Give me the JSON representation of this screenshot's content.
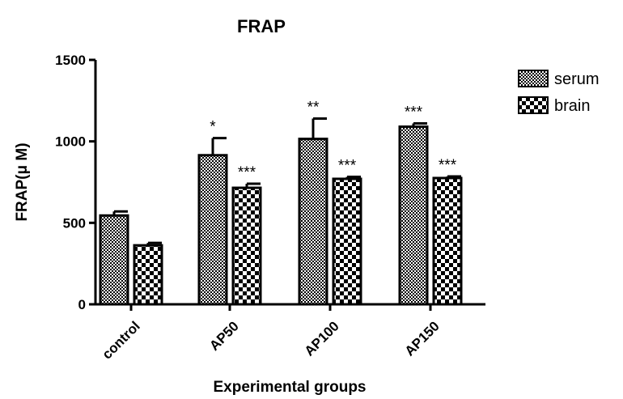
{
  "chart_data": {
    "type": "bar",
    "title": "FRAP",
    "xlabel": "Experimental groups",
    "ylabel": "FRAP(μ M)",
    "ylim": [
      0,
      1500
    ],
    "yticks": [
      0,
      500,
      1000,
      1500
    ],
    "categories": [
      "control",
      "AP50",
      "AP100",
      "AP150"
    ],
    "series": [
      {
        "name": "serum",
        "pattern": "fine-checker",
        "values": [
          545,
          915,
          1015,
          1090
        ],
        "errors": [
          25,
          105,
          125,
          20
        ],
        "significance": [
          "",
          "*",
          "**",
          "***"
        ]
      },
      {
        "name": "brain",
        "pattern": "coarse-checker",
        "values": [
          362,
          715,
          770,
          775
        ],
        "errors": [
          15,
          25,
          12,
          10
        ],
        "significance": [
          "",
          "***",
          "***",
          "***"
        ]
      }
    ],
    "grid": false,
    "legend": "top-right"
  }
}
